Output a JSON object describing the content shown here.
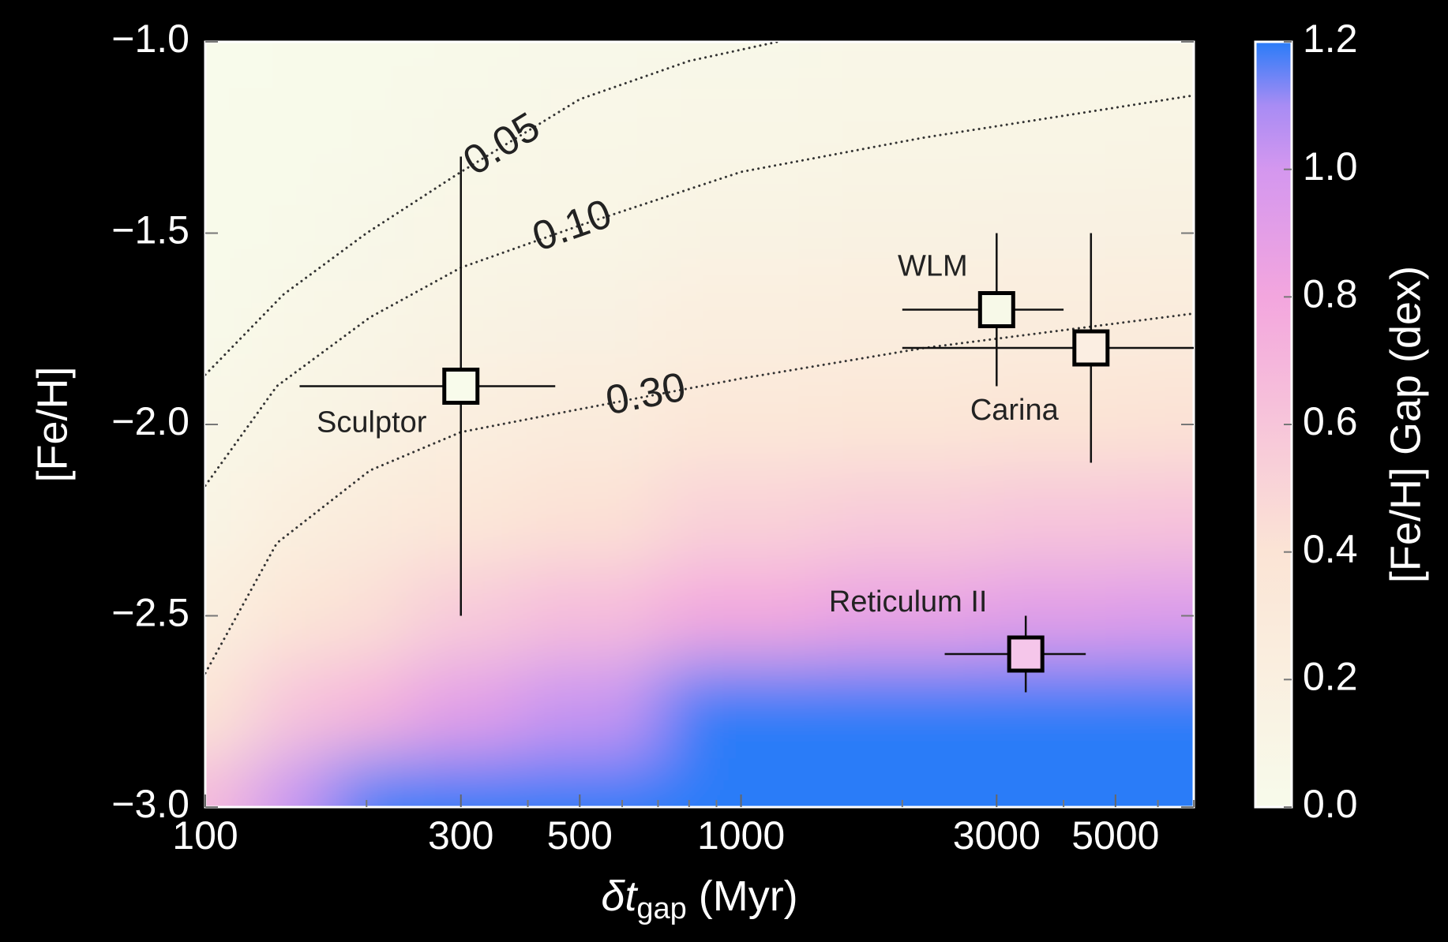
{
  "chart_data": {
    "type": "scatter",
    "xlabel": {
      "main": "δt",
      "sub": "gap",
      "rest": " (Myr)"
    },
    "ylabel": "[Fe/H]",
    "xscale": "log",
    "xlim": [
      100,
      7000
    ],
    "ylim": [
      -3.0,
      -1.0
    ],
    "xticks": [
      100,
      300,
      500,
      1000,
      3000,
      5000
    ],
    "xminorticks": [
      200,
      400,
      600,
      700,
      800,
      900,
      2000,
      4000,
      6000,
      7000
    ],
    "yticks": [
      {
        "value": -1.0,
        "label": "−1.0"
      },
      {
        "value": -1.5,
        "label": "−1.5"
      },
      {
        "value": -2.0,
        "label": "−2.0"
      },
      {
        "value": -2.5,
        "label": "−2.5"
      },
      {
        "value": -3.0,
        "label": "−3.0"
      }
    ],
    "points": [
      {
        "name": "Sculptor",
        "x": 300,
        "y": -1.9,
        "xerr": [
          150,
          150
        ],
        "yerr": 0.6,
        "color": "#f8fbeb"
      },
      {
        "name": "WLM",
        "x": 3000,
        "y": -1.7,
        "xerr": [
          1000,
          1000
        ],
        "yerr": 0.2,
        "color": "#f7f9e8"
      },
      {
        "name": "Carina",
        "x": 4500,
        "y": -1.8,
        "xerr": [
          2500,
          2500
        ],
        "yerr": 0.3,
        "color": "#fbeee2"
      },
      {
        "name": "Reticulum II",
        "x": 3400,
        "y": -2.6,
        "xerr": [
          1000,
          1000
        ],
        "yerr": 0.1,
        "color": "#f5c6ea"
      }
    ],
    "contours": [
      {
        "level": 0.05,
        "label": "0.05",
        "x": [
          100,
          140,
          200,
          300,
          500,
          800,
          1170
        ],
        "y": [
          -1.87,
          -1.66,
          -1.5,
          -1.34,
          -1.15,
          -1.05,
          -1.0
        ]
      },
      {
        "level": 0.1,
        "label": "0.10",
        "x": [
          100,
          136,
          203,
          300,
          500,
          1000,
          2200,
          7000
        ],
        "y": [
          -2.16,
          -1.9,
          -1.72,
          -1.59,
          -1.48,
          -1.34,
          -1.25,
          -1.14
        ]
      },
      {
        "level": 0.3,
        "label": "0.30",
        "x": [
          100,
          136,
          203,
          300,
          500,
          1000,
          2200,
          7000
        ],
        "y": [
          -2.65,
          -2.31,
          -2.12,
          -2.02,
          -1.96,
          -1.88,
          -1.8,
          -1.71
        ]
      }
    ],
    "heatmap": {
      "x": [
        100,
        150,
        200,
        300,
        500,
        1000,
        2000,
        4000,
        7000
      ],
      "y": [
        -1.0,
        -1.25,
        -1.5,
        -1.75,
        -2.0,
        -2.25,
        -2.5,
        -2.75,
        -3.0
      ],
      "z": [
        [
          0.007,
          0.015,
          0.023,
          0.033,
          0.045,
          0.06,
          0.069,
          0.076,
          0.078
        ],
        [
          0.012,
          0.025,
          0.037,
          0.054,
          0.07,
          0.092,
          0.105,
          0.11,
          0.12
        ],
        [
          0.021,
          0.043,
          0.061,
          0.086,
          0.11,
          0.14,
          0.16,
          0.17,
          0.18
        ],
        [
          0.038,
          0.073,
          0.1,
          0.14,
          0.17,
          0.22,
          0.24,
          0.26,
          0.27
        ],
        [
          0.068,
          0.124,
          0.16,
          0.22,
          0.27,
          0.34,
          0.37,
          0.4,
          0.41
        ],
        [
          0.12,
          0.21,
          0.27,
          0.35,
          0.42,
          0.52,
          0.56,
          0.6,
          0.62
        ],
        [
          0.21,
          0.36,
          0.44,
          0.57,
          0.66,
          0.79,
          0.86,
          0.91,
          0.94
        ],
        [
          0.38,
          0.61,
          0.72,
          0.91,
          1.03,
          1.22,
          1.31,
          1.37,
          1.42
        ],
        [
          0.68,
          1.03,
          1.19,
          1.46,
          1.62,
          1.88,
          1.99,
          2.08,
          2.15
        ]
      ]
    },
    "colorbar": {
      "label": "[Fe/H] Gap (dex)",
      "clim": [
        0.0,
        1.2
      ],
      "ticks": [
        {
          "value": 0.0,
          "label": "0.0"
        },
        {
          "value": 0.2,
          "label": "0.2"
        },
        {
          "value": 0.4,
          "label": "0.4"
        },
        {
          "value": 0.6,
          "label": "0.6"
        },
        {
          "value": 0.8,
          "label": "0.8"
        },
        {
          "value": 1.0,
          "label": "1.0"
        },
        {
          "value": 1.2,
          "label": "1.2"
        }
      ],
      "colormap": [
        {
          "value": 0.0,
          "color": "#f8fbeb"
        },
        {
          "value": 0.4,
          "color": "#fbe4d5"
        },
        {
          "value": 0.8,
          "color": "#f3a6de"
        },
        {
          "value": 1.0,
          "color": "#d497ef"
        },
        {
          "value": 1.1,
          "color": "#a88cf4"
        },
        {
          "value": 1.2,
          "color": "#2a7cf8"
        }
      ]
    }
  }
}
